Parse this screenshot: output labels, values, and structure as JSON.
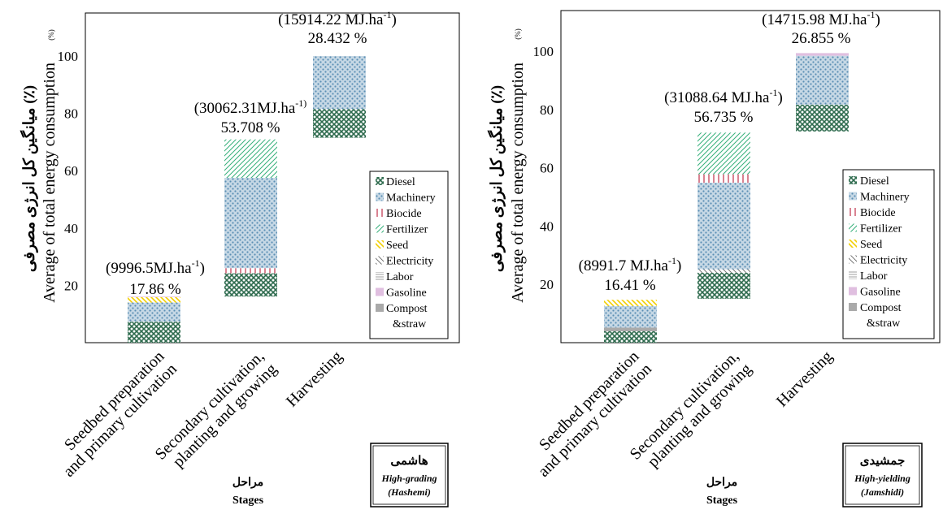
{
  "stages_label_fa": "مراحل",
  "stages_label_en": "Stages",
  "ylabel_fa": "میانگین کل انرژی مصرفی (٪)",
  "ylabel_en": "Average of total energy consumption",
  "ylabel_unit": "(%)",
  "legend": [
    {
      "name": "Diesel",
      "color": "#2e6b4e",
      "pattern": "crosshatch"
    },
    {
      "name": "Machinery",
      "color": "#5b8fb4",
      "pattern": "dots"
    },
    {
      "name": "Biocide",
      "color": "#c0304a",
      "pattern": "vlines"
    },
    {
      "name": "Fertilizer",
      "color": "#35b07a",
      "pattern": "diag"
    },
    {
      "name": "Seed",
      "color": "#f2cf00",
      "pattern": "diag2"
    },
    {
      "name": "Electricity",
      "color": "#666666",
      "pattern": "diag3"
    },
    {
      "name": "Labor",
      "color": "#7f7f7f",
      "pattern": "hlines"
    },
    {
      "name": "Gasoline",
      "color": "#e0bfe0",
      "pattern": "solid"
    },
    {
      "name": "Compost",
      "name_line2": "&straw",
      "color": "#444444",
      "pattern": "vlines-dense"
    }
  ],
  "chart_data": [
    {
      "type": "bar",
      "subtype": "waterfall-stacked",
      "title_fa": "هاشمی",
      "title_en_line1": "High-grading",
      "title_en_line2": "(Hashemi)",
      "ylim": [
        0,
        115
      ],
      "yticks": [
        20,
        40,
        60,
        80,
        100
      ],
      "categories": [
        "Seedbed preparation|and primary cultivation",
        "Secondary cultivation,|planting and growing",
        "Harvesting"
      ],
      "bar_labels": [
        {
          "energy": "(9996.5MJ.ha",
          "sup": "-1",
          "close": ")",
          "percent": "17.86 %"
        },
        {
          "energy": "(30062.31MJ.ha",
          "sup": "-1)",
          "close": "",
          "percent": "53.708 %"
        },
        {
          "energy": "(15914.22 MJ.ha",
          "sup": "-1",
          "close": ")",
          "percent": "28.432 %"
        }
      ],
      "stacks": [
        {
          "base": 0,
          "segments": [
            {
              "input": "Diesel",
              "value": 7.3
            },
            {
              "input": "Machinery",
              "value": 6.7
            },
            {
              "input": "Seed",
              "value": 1.86
            },
            {
              "input": "Gasoline",
              "value": 0.2
            }
          ]
        },
        {
          "base": 16.1,
          "segments": [
            {
              "input": "Diesel",
              "value": 8.1
            },
            {
              "input": "Biocide",
              "value": 1.8
            },
            {
              "input": "Machinery",
              "value": 31.5
            },
            {
              "input": "Fertilizer",
              "value": 13.4
            }
          ]
        },
        {
          "base": 71.5,
          "segments": [
            {
              "input": "Diesel",
              "value": 10.0
            },
            {
              "input": "Machinery",
              "value": 18.5
            }
          ]
        }
      ]
    },
    {
      "type": "bar",
      "subtype": "waterfall-stacked",
      "title_fa": "جمشیدی",
      "title_en_line1": "High-yielding",
      "title_en_line2": "(Jamshidi)",
      "ylim": [
        0,
        114
      ],
      "yticks": [
        20,
        40,
        60,
        80,
        100
      ],
      "categories": [
        "Seedbed preparation|and primary cultivation",
        "Secondary cultivation,|planting and growing",
        "Harvesting"
      ],
      "bar_labels": [
        {
          "energy": "(8991.7 MJ.ha",
          "sup": "-1",
          "close": ")",
          "percent": "16.41 %"
        },
        {
          "energy": "(31088.64 MJ.ha",
          "sup": "-1",
          "close": ")",
          "percent": "56.735 %"
        },
        {
          "energy": "(14715.98 MJ.ha",
          "sup": "-1",
          "close": ")",
          "percent": "26.855 %"
        }
      ],
      "stacks": [
        {
          "base": 0,
          "segments": [
            {
              "input": "Diesel",
              "value": 3.9
            },
            {
              "input": "Compost",
              "value": 1.3
            },
            {
              "input": "Machinery",
              "value": 7.4
            },
            {
              "input": "Seed",
              "value": 2.1
            }
          ]
        },
        {
          "base": 15.1,
          "segments": [
            {
              "input": "Diesel",
              "value": 8.9
            },
            {
              "input": "Electricity",
              "value": 1.2
            },
            {
              "input": "Machinery",
              "value": 29.7
            },
            {
              "input": "Biocide",
              "value": 2.9
            },
            {
              "input": "Fertilizer",
              "value": 14.3
            }
          ]
        },
        {
          "base": 72.5,
          "segments": [
            {
              "input": "Diesel",
              "value": 9.2
            },
            {
              "input": "Machinery",
              "value": 16.8
            },
            {
              "input": "Gasoline",
              "value": 0.9
            }
          ]
        }
      ]
    }
  ]
}
